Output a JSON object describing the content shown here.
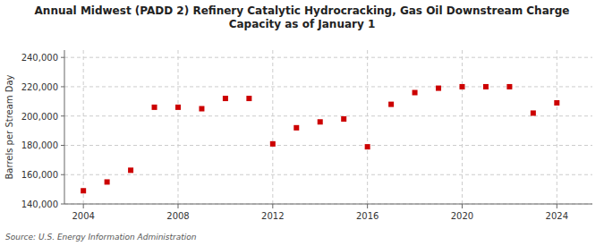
{
  "chart_data": {
    "type": "scatter",
    "title": "Annual Midwest (PADD 2) Refinery Catalytic Hydrocracking, Gas Oil Downstream Charge\nCapacity as of January 1",
    "y_label": "Barrels per Stream Day",
    "source": "Source: U.S. Energy Information Administration",
    "x": [
      2004,
      2005,
      2006,
      2007,
      2008,
      2009,
      2010,
      2011,
      2012,
      2013,
      2014,
      2015,
      2016,
      2017,
      2018,
      2019,
      2020,
      2021,
      2022,
      2023,
      2024
    ],
    "values": [
      149000,
      155000,
      163000,
      206000,
      206000,
      205000,
      212000,
      212000,
      181000,
      192000,
      196000,
      198000,
      179000,
      208000,
      216000,
      219000,
      220000,
      220000,
      220000,
      202000,
      209000
    ],
    "color": "#cc0000",
    "marker": "square",
    "xlim": [
      2003.2,
      2025.5
    ],
    "xticks": [
      2004,
      2008,
      2012,
      2016,
      2020,
      2024
    ],
    "ylim": [
      140000,
      245000
    ],
    "yticks": [
      {
        "value": 140000,
        "label": "140,000"
      },
      {
        "value": 160000,
        "label": "160,000"
      },
      {
        "value": 180000,
        "label": "180,000"
      },
      {
        "value": 200000,
        "label": "200,000"
      },
      {
        "value": 220000,
        "label": "220,000"
      },
      {
        "value": 240000,
        "label": "240,000"
      }
    ],
    "grid": true
  }
}
